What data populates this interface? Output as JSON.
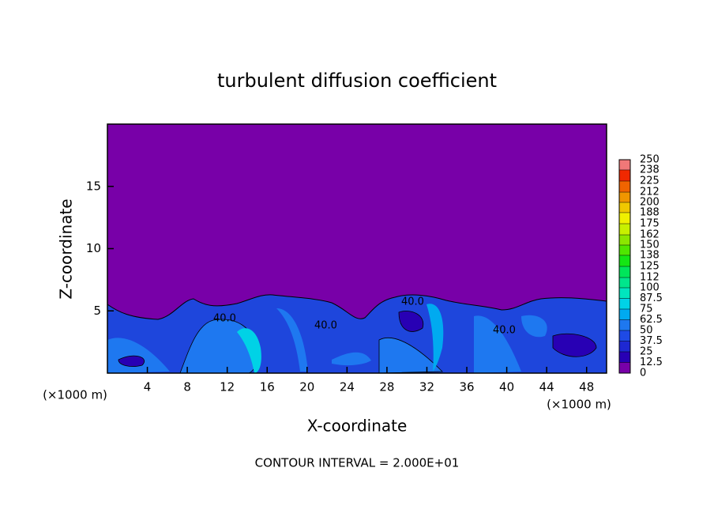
{
  "chart_data": {
    "type": "contour",
    "title": "turbulent diffusion coefficient",
    "x_label": "X-coordinate",
    "y_label": "Z-coordinate",
    "x_unit": "(×1000 m)",
    "y_unit": "(×1000 m)",
    "annotation": "CONTOUR INTERVAL = 2.000E+01",
    "contour_labels": [
      "40.0",
      "40.0",
      "40.0",
      "40.0"
    ],
    "xlim": [
      0,
      50
    ],
    "xticks": [
      4,
      8,
      12,
      16,
      20,
      24,
      28,
      32,
      36,
      40,
      44,
      48
    ],
    "ylim": [
      0,
      20
    ],
    "yticks": [
      5,
      10,
      15
    ],
    "colorbar": {
      "levels": [
        0,
        12.5,
        25,
        37.5,
        50,
        62.5,
        75,
        87.5,
        100,
        112,
        125,
        138,
        150,
        162,
        175,
        188,
        200,
        212,
        225,
        238,
        250
      ],
      "colors": [
        "#7800a8",
        "#2800b4",
        "#1e28d2",
        "#1e4ae6",
        "#1e78f0",
        "#00aaf0",
        "#00d2e6",
        "#00e6be",
        "#00e68c",
        "#00e65a",
        "#14e614",
        "#50e600",
        "#8ce600",
        "#c8f000",
        "#f0f000",
        "#f0c800",
        "#f09600",
        "#f06400",
        "#f02800",
        "#f07878"
      ]
    }
  }
}
